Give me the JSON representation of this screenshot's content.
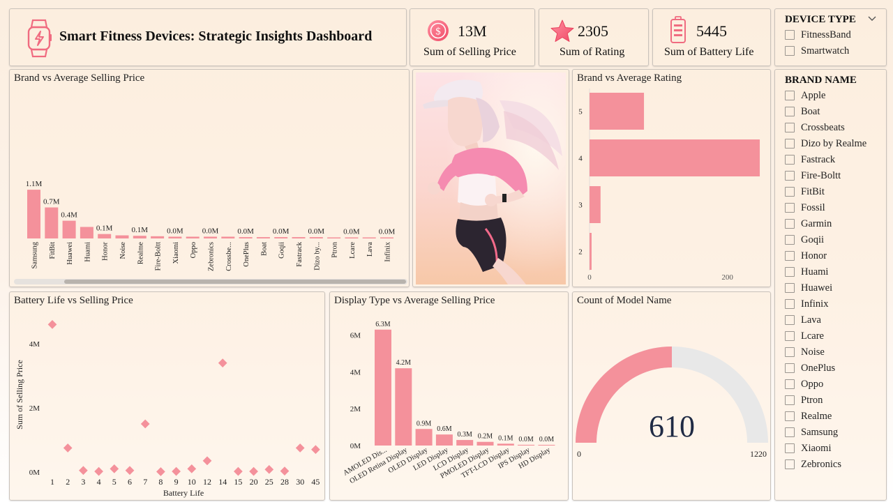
{
  "header": {
    "title": "Smart Fitness Devices: Strategic Insights Dashboard",
    "icon": "smartwatch-icon"
  },
  "kpis": [
    {
      "value": "13M",
      "label": "Sum of Selling Price",
      "icon": "dollar-coin-icon"
    },
    {
      "value": "2305",
      "label": "Sum of Rating",
      "icon": "star-icon"
    },
    {
      "value": "5445",
      "label": "Sum of Battery Life",
      "icon": "battery-icon"
    }
  ],
  "device_type_slicer": {
    "title": "DEVICE TYPE",
    "items": [
      "FitnessBand",
      "Smartwatch"
    ]
  },
  "brand_slicer": {
    "title": "BRAND NAME",
    "items": [
      "Apple",
      "Boat",
      "Crossbeats",
      "Dizo by Realme",
      "Fastrack",
      "Fire-Boltt",
      "FitBit",
      "Fossil",
      "Garmin",
      "Goqii",
      "Honor",
      "Huami",
      "Huawei",
      "Infinix",
      "Lava",
      "Lcare",
      "Noise",
      "OnePlus",
      "Oppo",
      "Ptron",
      "Realme",
      "Samsung",
      "Xiaomi",
      "Zebronics"
    ]
  },
  "colors": {
    "bar": "#f4919b",
    "gauge_fill": "#f4919b",
    "gauge_track": "#e8e8e8"
  },
  "image": {
    "subject": "illustration of a woman jogging in a pink hoodie"
  },
  "chart_data": [
    {
      "id": "brand_price",
      "type": "bar",
      "title": "Brand vs Average Selling Price",
      "categories": [
        "Samsung",
        "FitBit",
        "Huawei",
        "Huami",
        "Honor",
        "Noise",
        "Realme",
        "Fire-Boltt",
        "Xiaomi",
        "Oppo",
        "Zebronics",
        "Crossbe...",
        "OnePlus",
        "Boat",
        "Goqii",
        "Fastrack",
        "Dizo by...",
        "Ptron",
        "Lcare",
        "Lava",
        "Infinix"
      ],
      "values": [
        1.1,
        0.7,
        0.4,
        0.26,
        0.1,
        0.07,
        0.06,
        0.05,
        0.04,
        0.04,
        0.04,
        0.04,
        0.03,
        0.03,
        0.03,
        0.03,
        0.03,
        0.02,
        0.02,
        0.02,
        0.02
      ],
      "data_labels": [
        "1.1M",
        "0.7M",
        "0.4M",
        "",
        "0.1M",
        "",
        "0.1M",
        "",
        "0.0M",
        "",
        "0.0M",
        "",
        "0.0M",
        "",
        "0.0M",
        "",
        "0.0M",
        "",
        "0.0M",
        "",
        "0.0M"
      ],
      "unit": "M"
    },
    {
      "id": "brand_rating",
      "type": "bar",
      "orientation": "horizontal",
      "title": "Brand vs Average Rating",
      "categories": [
        "5",
        "4",
        "3",
        "2"
      ],
      "values": [
        79,
        247,
        16,
        3
      ],
      "xticks": [
        "0",
        "200"
      ],
      "xlim": [
        0,
        250
      ]
    },
    {
      "id": "battery_price",
      "type": "scatter",
      "title": "Battery Life vs Selling Price",
      "xlabel": "Battery Life",
      "ylabel": "Sum of Selling Price",
      "x": [
        "1",
        "2",
        "3",
        "4",
        "5",
        "6",
        "7",
        "8",
        "9",
        "10",
        "12",
        "14",
        "15",
        "20",
        "25",
        "28",
        "30",
        "45"
      ],
      "y": [
        4.6,
        0.75,
        0.05,
        0.02,
        0.1,
        0.05,
        1.5,
        0.01,
        0.02,
        0.1,
        0.35,
        3.4,
        0.02,
        0.02,
        0.08,
        0.03,
        0.75,
        0.7
      ],
      "yticks": [
        "0M",
        "2M",
        "4M"
      ],
      "ylim": [
        0,
        5
      ]
    },
    {
      "id": "display_price",
      "type": "bar",
      "title": "Display Type vs Average Selling Price",
      "categories": [
        "AMOLED Dis...",
        "OLED Retina Display",
        "OLED Display",
        "LED Display",
        "LCD Display",
        "PMOLED Display",
        "TFT-LCD Display",
        "IPS Display",
        "HD Display"
      ],
      "values": [
        6.3,
        4.2,
        0.9,
        0.6,
        0.3,
        0.2,
        0.1,
        0.04,
        0.03
      ],
      "data_labels": [
        "6.3M",
        "4.2M",
        "0.9M",
        "0.6M",
        "0.3M",
        "0.2M",
        "0.1M",
        "0.0M",
        "0.0M"
      ],
      "yticks": [
        "0M",
        "2M",
        "4M",
        "6M"
      ],
      "ylim": [
        0,
        6.5
      ]
    },
    {
      "id": "model_count",
      "type": "gauge",
      "title": "Count of Model Name",
      "value": 610,
      "min": 0,
      "max": 1220,
      "value_label": "610",
      "min_label": "0",
      "max_label": "1220"
    }
  ]
}
